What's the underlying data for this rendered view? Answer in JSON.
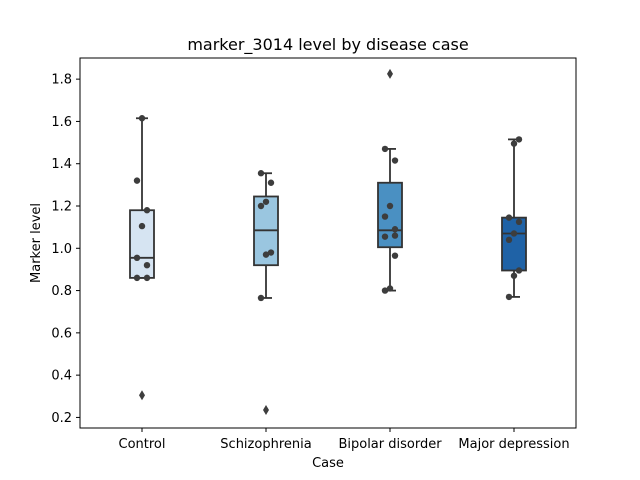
{
  "chart_data": {
    "type": "box",
    "title": "marker_3014 level by disease case",
    "xlabel": "Case",
    "ylabel": "Marker level",
    "ylim": [
      0.15,
      1.9
    ],
    "yticks": [
      0.2,
      0.4,
      0.6,
      0.8,
      1.0,
      1.2,
      1.4,
      1.6,
      1.8
    ],
    "ytick_labels": [
      "0.2",
      "0.4",
      "0.6",
      "0.8",
      "1.0",
      "1.2",
      "1.4",
      "1.6",
      "1.8"
    ],
    "grid": false,
    "categories": [
      "Control",
      "Schizophrenia",
      "Bipolar disorder",
      "Major depression"
    ],
    "colors": [
      "#d6e4f2",
      "#9ac6e0",
      "#4a90c2",
      "#1f62a6"
    ],
    "boxes": [
      {
        "category": "Control",
        "whisker_low": 0.86,
        "q1": 0.86,
        "median": 0.955,
        "q3": 1.18,
        "whisker_high": 1.615,
        "outliers": [
          0.305
        ],
        "points": [
          0.86,
          0.86,
          0.92,
          0.955,
          1.105,
          1.18,
          1.32,
          1.615
        ]
      },
      {
        "category": "Schizophrenia",
        "whisker_low": 0.765,
        "q1": 0.92,
        "median": 1.085,
        "q3": 1.245,
        "whisker_high": 1.355,
        "outliers": [
          0.235
        ],
        "points": [
          0.765,
          0.97,
          0.98,
          1.2,
          1.22,
          1.31,
          1.355
        ]
      },
      {
        "category": "Bipolar disorder",
        "whisker_low": 0.8,
        "q1": 1.005,
        "median": 1.085,
        "q3": 1.31,
        "whisker_high": 1.47,
        "outliers": [
          1.825
        ],
        "points": [
          0.8,
          0.81,
          0.965,
          1.055,
          1.06,
          1.09,
          1.15,
          1.2,
          1.415,
          1.47
        ]
      },
      {
        "category": "Major depression",
        "whisker_low": 0.77,
        "q1": 0.895,
        "median": 1.07,
        "q3": 1.145,
        "whisker_high": 1.515,
        "outliers": [],
        "points": [
          0.77,
          0.87,
          0.895,
          1.04,
          1.07,
          1.125,
          1.145,
          1.495,
          1.515
        ]
      }
    ]
  }
}
